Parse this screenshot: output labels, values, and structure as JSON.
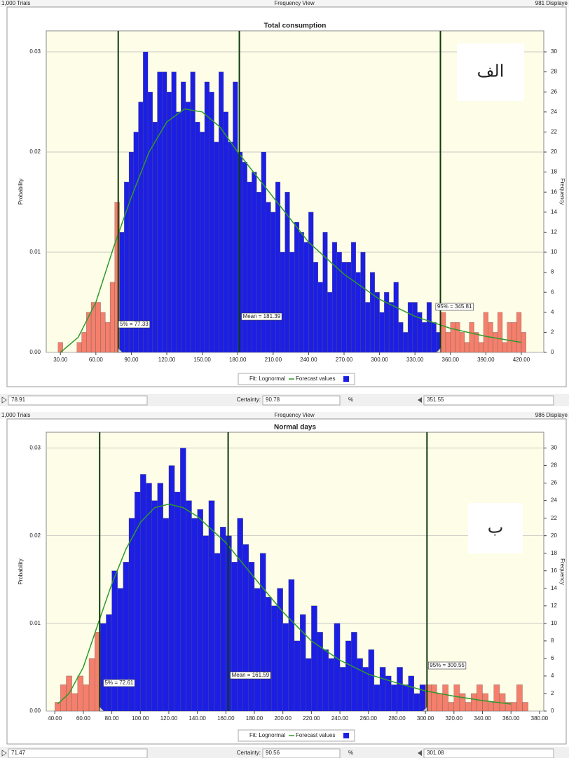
{
  "panels": [
    {
      "header": {
        "trials": "1,000 Trials",
        "view": "Frequency View",
        "displayed": "981 Displaye"
      },
      "footer": {
        "lower": 78.91,
        "certainty_label": "Certainty:",
        "certainty": 90.78,
        "percent": "%",
        "upper": 351.55
      }
    },
    {
      "header": {
        "trials": "1,000 Trials",
        "view": "Frequency View",
        "displayed": "986 Displaye"
      },
      "footer": {
        "lower": 71.47,
        "certainty_label": "Certainty:",
        "certainty": 90.56,
        "percent": "%",
        "upper": 301.08
      }
    }
  ],
  "chart_data": [
    {
      "type": "histogram",
      "title": "Total consumption",
      "annotation": "الف",
      "ylabel": "Probability",
      "y2label": "Frequency",
      "bins": [
        24,
        28,
        32,
        36,
        40,
        44,
        48,
        52,
        56,
        60,
        64,
        68,
        72,
        76,
        80,
        84,
        88,
        92,
        96,
        100,
        104,
        108,
        112,
        116,
        120,
        124,
        128,
        132,
        136,
        140,
        144,
        148,
        152,
        156,
        160,
        164,
        168,
        172,
        176,
        180,
        184,
        188,
        192,
        196,
        200,
        204,
        208,
        212,
        216,
        220,
        224,
        228,
        232,
        236,
        240,
        244,
        248,
        252,
        256,
        260,
        264,
        268,
        272,
        276,
        280,
        284,
        288,
        292,
        296,
        300,
        304,
        308,
        312,
        316,
        320,
        324,
        328,
        332,
        336,
        340,
        344,
        348,
        352,
        356,
        360,
        364,
        368,
        372,
        376,
        380,
        384,
        388,
        392,
        396,
        400,
        404,
        408,
        412,
        416,
        420,
        424
      ],
      "series": [
        {
          "name": "Forecast values",
          "color": "#1c1fe3",
          "outside_color": "#f47f6c",
          "axis": "y2",
          "values": [
            0,
            1,
            0,
            0,
            0,
            1,
            2,
            4,
            5,
            5,
            4,
            3,
            7,
            15,
            12,
            17,
            20,
            22,
            25,
            30,
            26,
            23,
            28,
            28,
            26,
            28,
            24,
            27,
            25,
            28,
            23,
            22,
            27,
            26,
            21,
            28,
            24,
            21,
            27,
            20,
            19,
            17,
            18,
            16,
            20,
            15,
            14,
            17,
            10,
            16,
            10,
            13,
            12,
            11,
            14,
            9,
            7,
            12,
            6,
            11,
            10,
            9,
            9,
            11,
            8,
            10,
            5,
            8,
            6,
            4,
            6,
            5,
            7,
            3,
            2,
            5,
            5,
            4,
            3,
            5,
            3,
            2,
            4,
            2,
            3,
            3,
            2,
            1,
            3,
            2,
            1,
            4,
            3,
            2,
            4,
            1,
            3,
            3,
            4,
            2
          ]
        }
      ],
      "fit": {
        "name": "Fit: Lognormal",
        "color": "#2f9a2a",
        "x": [
          30,
          45,
          60,
          75,
          90,
          105,
          120,
          135,
          150,
          165,
          180,
          210,
          240,
          270,
          300,
          330,
          360,
          390,
          420
        ],
        "y": [
          0,
          0.0015,
          0.005,
          0.0105,
          0.0155,
          0.02,
          0.023,
          0.0243,
          0.024,
          0.0225,
          0.02,
          0.0155,
          0.011,
          0.0078,
          0.0053,
          0.0036,
          0.0024,
          0.0016,
          0.001
        ]
      },
      "markers": [
        {
          "value": 77.33,
          "label": "5% = 77.33"
        },
        {
          "value": 181.39,
          "label": "Mean = 181.39"
        },
        {
          "value": 345.81,
          "label": "95% = 345.81"
        }
      ],
      "xlim": [
        18,
        439
      ],
      "xticks": [
        {
          "value": 30,
          "label": "30.00"
        },
        {
          "value": 60,
          "label": "60.00"
        },
        {
          "value": 90,
          "label": "90.00"
        },
        {
          "value": 120,
          "label": "120.00"
        },
        {
          "value": 150,
          "label": "150.00"
        },
        {
          "value": 180,
          "label": "180.00"
        },
        {
          "value": 210,
          "label": "210.00"
        },
        {
          "value": 240,
          "label": "240.00"
        },
        {
          "value": 270,
          "label": "270.00"
        },
        {
          "value": 300,
          "label": "300.00"
        },
        {
          "value": 330,
          "label": "330.00"
        },
        {
          "value": 360,
          "label": "360.00"
        },
        {
          "value": 390,
          "label": "390.00"
        },
        {
          "value": 420,
          "label": "420.00"
        }
      ],
      "ylim": [
        0,
        0.0321
      ],
      "yticks": [
        {
          "value": 0,
          "label": "0.00"
        },
        0.01,
        0.02,
        0.03
      ],
      "y2lim": [
        0,
        32.1
      ],
      "y2ticks": [
        0,
        2,
        4,
        6,
        8,
        10,
        12,
        14,
        16,
        18,
        20,
        22,
        24,
        26,
        28,
        30
      ],
      "grid": true
    },
    {
      "type": "histogram",
      "title": "Normal days",
      "annotation": "ب",
      "ylabel": "Probability",
      "y2label": "Frequency",
      "bins": [
        40,
        44,
        48,
        52,
        56,
        60,
        64,
        68,
        72,
        76,
        80,
        84,
        88,
        92,
        96,
        100,
        104,
        108,
        112,
        116,
        120,
        124,
        128,
        132,
        136,
        140,
        144,
        148,
        152,
        156,
        160,
        164,
        168,
        172,
        176,
        180,
        184,
        188,
        192,
        196,
        200,
        204,
        208,
        212,
        216,
        220,
        224,
        228,
        232,
        236,
        240,
        244,
        248,
        252,
        256,
        260,
        264,
        268,
        272,
        276,
        280,
        284,
        288,
        292,
        296,
        300,
        304,
        308,
        312,
        316,
        320,
        324,
        328,
        332,
        336,
        340,
        344,
        348,
        352,
        356,
        360,
        364,
        368,
        372
      ],
      "series": [
        {
          "name": "Forecast values",
          "color": "#1c1fe3",
          "outside_color": "#f47f6c",
          "axis": "y2",
          "values": [
            1,
            3,
            4,
            2,
            4,
            3,
            6,
            9,
            10,
            11,
            16,
            14,
            17,
            22,
            25,
            27,
            26,
            24,
            26,
            22,
            28,
            25,
            30,
            24,
            22,
            23,
            20,
            24,
            18,
            21,
            20,
            17,
            22,
            19,
            17,
            14,
            18,
            13,
            12,
            14,
            10,
            15,
            8,
            11,
            6,
            12,
            9,
            7,
            6,
            10,
            5,
            8,
            9,
            6,
            5,
            7,
            3,
            5,
            4,
            3,
            5,
            3,
            4,
            2,
            3,
            3,
            3,
            2,
            3,
            1,
            3,
            2,
            1,
            2,
            3,
            2,
            1,
            3,
            2,
            1,
            1,
            3,
            1
          ]
        }
      ],
      "fit": {
        "name": "Fit: Lognormal",
        "color": "#2f9a2a",
        "x": [
          42,
          50,
          60,
          70,
          80,
          90,
          100,
          110,
          120,
          130,
          140,
          160,
          180,
          200,
          220,
          240,
          260,
          280,
          300,
          320,
          340,
          360
        ],
        "y": [
          0.0008,
          0.002,
          0.005,
          0.0098,
          0.0145,
          0.0185,
          0.0215,
          0.0232,
          0.0236,
          0.0232,
          0.0222,
          0.0192,
          0.0152,
          0.0113,
          0.008,
          0.0058,
          0.0042,
          0.0032,
          0.0023,
          0.0017,
          0.0012,
          0.0008
        ]
      },
      "markers": [
        {
          "value": 72.61,
          "label": "5% = 72.61"
        },
        {
          "value": 161.59,
          "label": "Mean = 161.59"
        },
        {
          "value": 300.55,
          "label": "95% = 300.55"
        }
      ],
      "xlim": [
        34,
        383
      ],
      "xticks": [
        {
          "value": 40,
          "label": "40.00"
        },
        {
          "value": 60,
          "label": "60.00"
        },
        {
          "value": 80,
          "label": "80.00"
        },
        {
          "value": 100,
          "label": "100.00"
        },
        {
          "value": 120,
          "label": "120.00"
        },
        {
          "value": 140,
          "label": "140.00"
        },
        {
          "value": 160,
          "label": "160.00"
        },
        {
          "value": 180,
          "label": "180.00"
        },
        {
          "value": 200,
          "label": "200.00"
        },
        {
          "value": 220,
          "label": "220.00"
        },
        {
          "value": 240,
          "label": "240.00"
        },
        {
          "value": 260,
          "label": "260.00"
        },
        {
          "value": 280,
          "label": "280.00"
        },
        {
          "value": 300,
          "label": "300.00"
        },
        {
          "value": 320,
          "label": "320.00"
        },
        {
          "value": 340,
          "label": "340.00"
        },
        {
          "value": 360,
          "label": "360.00"
        },
        {
          "value": 380,
          "label": "380.00"
        }
      ],
      "ylim": [
        0,
        0.0318
      ],
      "yticks": [
        {
          "value": 0,
          "label": "0.00"
        },
        0.01,
        0.02,
        0.03
      ],
      "y2lim": [
        0,
        31.8
      ],
      "y2ticks": [
        0,
        2,
        4,
        6,
        8,
        10,
        12,
        14,
        16,
        18,
        20,
        22,
        24,
        26,
        28,
        30
      ],
      "grid": true
    }
  ]
}
